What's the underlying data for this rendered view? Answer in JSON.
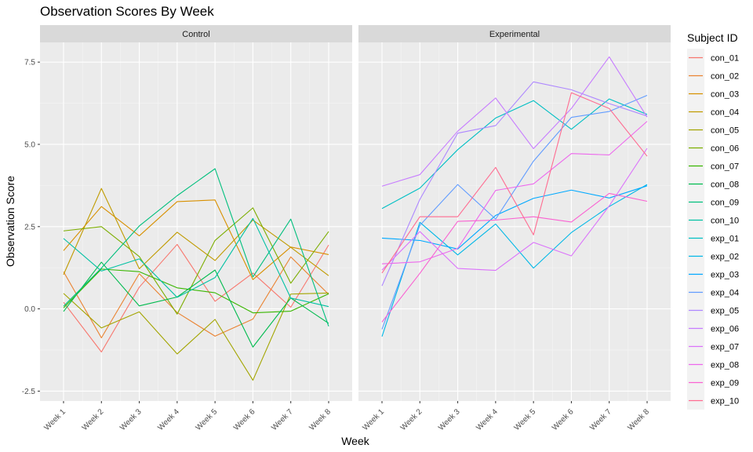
{
  "chart_data": {
    "type": "line",
    "title": "Observation Scores By Week",
    "xlabel": "Week",
    "ylabel": "Observation Score",
    "legend_title": "Subject ID",
    "legend_position": "right",
    "grid": true,
    "categories": [
      "Week 1",
      "Week 2",
      "Week 3",
      "Week 4",
      "Week 5",
      "Week 6",
      "Week 7",
      "Week 8"
    ],
    "ylim": [
      -2.8,
      8.1
    ],
    "yticks": [
      -2.5,
      0.0,
      2.5,
      5.0,
      7.5
    ],
    "ytick_labels": [
      "-2.5",
      "0.0",
      "2.5",
      "5.0",
      "7.5"
    ],
    "panels": [
      {
        "label": "Control",
        "series": [
          {
            "name": "con_01",
            "color": "#F8766D",
            "values": [
              0.2,
              -1.31,
              0.66,
              1.96,
              0.23,
              1.09,
              0.05,
              1.94
            ]
          },
          {
            "name": "con_02",
            "color": "#EA8331",
            "values": [
              1.13,
              -0.88,
              1.07,
              -0.11,
              -0.83,
              -0.31,
              1.58,
              0.44
            ]
          },
          {
            "name": "con_03",
            "color": "#D89000",
            "values": [
              1.77,
              3.11,
              2.22,
              3.26,
              3.31,
              0.89,
              1.88,
              1.65
            ]
          },
          {
            "name": "con_04",
            "color": "#C09B00",
            "values": [
              1.04,
              3.66,
              1.22,
              2.33,
              1.47,
              2.7,
              1.87,
              1.01
            ]
          },
          {
            "name": "con_05",
            "color": "#A3A500",
            "values": [
              0.47,
              -0.58,
              -0.09,
              -1.37,
              -0.32,
              -2.17,
              0.45,
              0.48
            ]
          },
          {
            "name": "con_06",
            "color": "#7CAE00",
            "values": [
              2.37,
              2.5,
              1.59,
              -0.16,
              2.08,
              3.07,
              0.78,
              2.35
            ]
          },
          {
            "name": "con_07",
            "color": "#39B600",
            "values": [
              0.03,
              1.21,
              1.13,
              0.64,
              0.49,
              -0.12,
              -0.07,
              0.46
            ]
          },
          {
            "name": "con_08",
            "color": "#00BB4E",
            "values": [
              -0.08,
              1.42,
              0.09,
              0.36,
              1.18,
              -1.16,
              0.33,
              -0.44
            ]
          },
          {
            "name": "con_09",
            "color": "#00BF7D",
            "values": [
              0.08,
              1.24,
              2.52,
              3.44,
              4.26,
              0.97,
              2.73,
              -0.53
            ]
          },
          {
            "name": "con_10",
            "color": "#00C1A3",
            "values": [
              2.14,
              1.15,
              1.52,
              0.35,
              0.95,
              2.75,
              0.33,
              0.07
            ]
          }
        ]
      },
      {
        "label": "Experimental",
        "series": [
          {
            "name": "exp_01",
            "color": "#00BFC4",
            "values": [
              3.05,
              3.67,
              4.84,
              5.8,
              6.33,
              5.46,
              6.38,
              5.91
            ]
          },
          {
            "name": "exp_02",
            "color": "#00B8E7",
            "values": [
              -0.84,
              2.63,
              1.64,
              2.58,
              1.24,
              2.32,
              3.11,
              3.78
            ]
          },
          {
            "name": "exp_03",
            "color": "#00A9FF",
            "values": [
              2.15,
              2.08,
              1.82,
              2.84,
              3.36,
              3.61,
              3.37,
              3.74
            ]
          },
          {
            "name": "exp_04",
            "color": "#619CFF",
            "values": [
              -0.62,
              2.54,
              3.78,
              2.73,
              4.49,
              5.82,
              6.0,
              6.49
            ]
          },
          {
            "name": "exp_05",
            "color": "#AE87FF",
            "values": [
              0.7,
              3.33,
              5.34,
              5.57,
              6.9,
              6.66,
              6.24,
              5.86
            ]
          },
          {
            "name": "exp_06",
            "color": "#C77CFF",
            "values": [
              3.73,
              4.08,
              5.4,
              6.41,
              4.87,
              6.09,
              7.66,
              5.83
            ]
          },
          {
            "name": "exp_07",
            "color": "#DB72FB",
            "values": [
              1.18,
              2.35,
              1.23,
              1.17,
              2.02,
              1.61,
              3.13,
              4.88
            ]
          },
          {
            "name": "exp_08",
            "color": "#ED68ED",
            "values": [
              1.37,
              1.43,
              1.84,
              3.6,
              3.8,
              4.72,
              4.68,
              5.7
            ]
          },
          {
            "name": "exp_09",
            "color": "#FA62D2",
            "values": [
              -0.4,
              1.08,
              2.66,
              2.7,
              2.8,
              2.64,
              3.51,
              3.27
            ]
          },
          {
            "name": "exp_10",
            "color": "#FF6C91",
            "values": [
              1.09,
              2.8,
              2.8,
              4.3,
              2.25,
              6.57,
              6.09,
              4.64
            ]
          }
        ]
      }
    ]
  }
}
